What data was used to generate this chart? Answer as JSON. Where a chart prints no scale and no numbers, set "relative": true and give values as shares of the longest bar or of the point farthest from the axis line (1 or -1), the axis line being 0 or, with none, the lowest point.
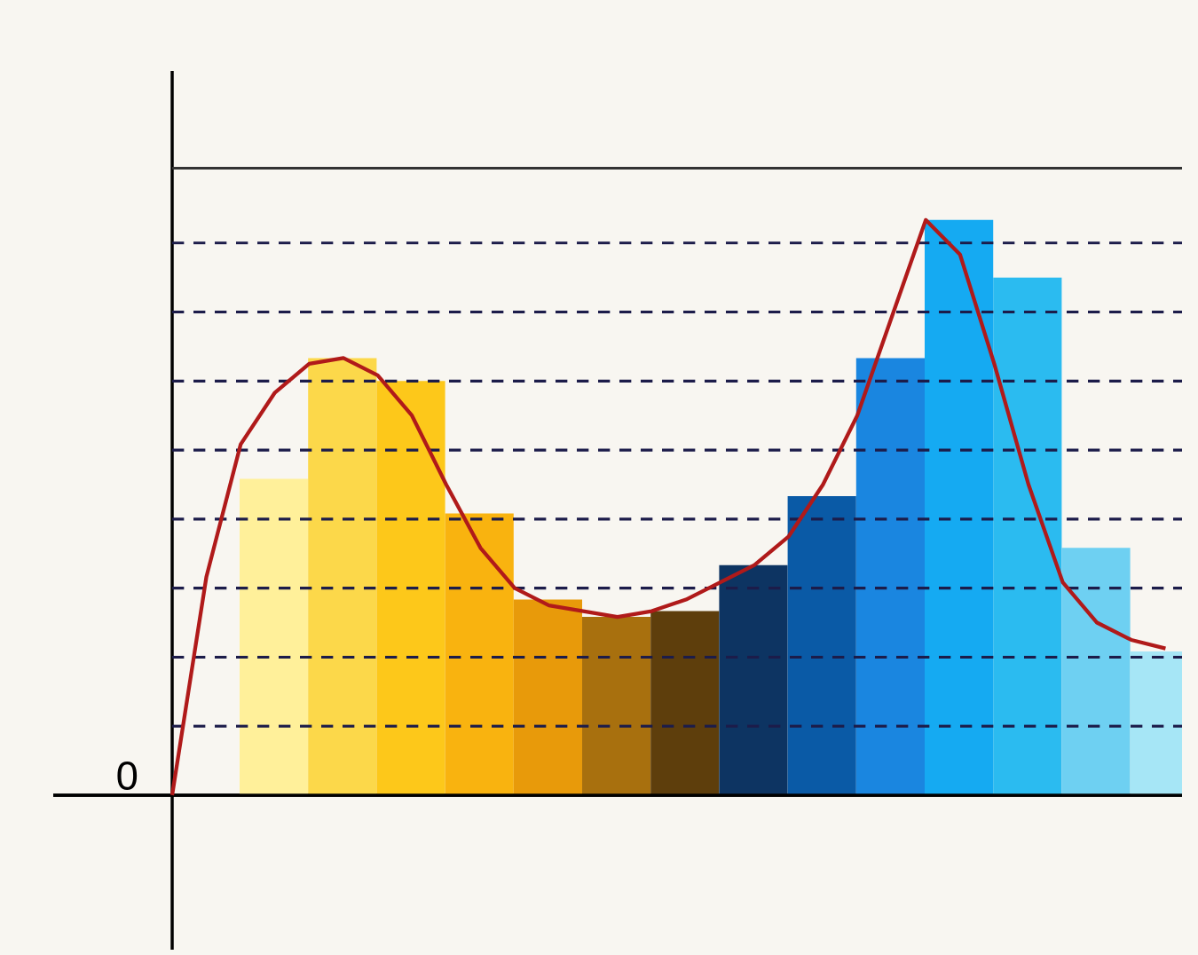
{
  "chart_data": [
    {
      "type": "bar",
      "relative": true,
      "categories": [
        null,
        null,
        null,
        null,
        null,
        null,
        null,
        null,
        null,
        null,
        null,
        null,
        null,
        null
      ],
      "values": [
        0.55,
        0.76,
        0.72,
        0.49,
        0.34,
        0.31,
        0.32,
        0.4,
        0.52,
        0.76,
        1.0,
        0.9,
        0.43,
        0.25
      ],
      "colors": [
        "#fff09a",
        "#fcd84a",
        "#fdc81a",
        "#f9b30f",
        "#e89a0a",
        "#a8700e",
        "#5e3e0c",
        "#0d3462",
        "#0a5aa6",
        "#1a86e0",
        "#15aaf2",
        "#2bbbf0",
        "#6ed0f2",
        "#a6e6f6"
      ],
      "ref_lines": [
        {
          "axis": "y",
          "value": 0.12,
          "color": "#1c1c4a",
          "line_style": "dashed"
        },
        {
          "axis": "y",
          "value": 0.24,
          "color": "#1c1c4a",
          "line_style": "dashed"
        },
        {
          "axis": "y",
          "value": 0.36,
          "color": "#1c1c4a",
          "line_style": "dashed"
        },
        {
          "axis": "y",
          "value": 0.48,
          "color": "#1c1c4a",
          "line_style": "dashed"
        },
        {
          "axis": "y",
          "value": 0.6,
          "color": "#1c1c4a",
          "line_style": "dashed"
        },
        {
          "axis": "y",
          "value": 0.72,
          "color": "#1c1c4a",
          "line_style": "dashed"
        },
        {
          "axis": "y",
          "value": 0.84,
          "color": "#1c1c4a",
          "line_style": "dashed"
        },
        {
          "axis": "y",
          "value": 0.96,
          "color": "#1c1c4a",
          "line_style": "dashed"
        },
        {
          "axis": "y",
          "value": 1.09,
          "color": "#333333",
          "line_style": "solid"
        }
      ],
      "annotations": [
        "0"
      ]
    },
    {
      "type": "line",
      "relative": true,
      "categories": [
        null,
        null,
        null,
        null,
        null,
        null,
        null,
        null,
        null,
        null,
        null,
        null,
        null,
        null,
        null,
        null,
        null,
        null,
        null,
        null,
        null,
        null,
        null,
        null,
        null,
        null,
        null,
        null,
        null,
        null
      ],
      "series": [
        {
          "color": "#b01a1a",
          "values": [
            0,
            0.38,
            0.61,
            0.7,
            0.75,
            0.76,
            0.73,
            0.66,
            0.54,
            0.43,
            0.36,
            0.33,
            0.32,
            0.31,
            0.32,
            0.34,
            0.37,
            0.4,
            0.45,
            0.54,
            0.66,
            0.83,
            1.0,
            0.94,
            0.75,
            0.54,
            0.37,
            0.3,
            0.27,
            0.255
          ]
        }
      ]
    }
  ]
}
